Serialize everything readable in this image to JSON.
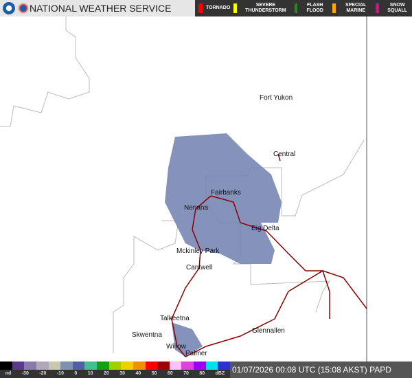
{
  "header": {
    "title": "NATIONAL WEATHER SERVICE"
  },
  "hazards": [
    {
      "label": "TORNADO",
      "color": "#ff0000"
    },
    {
      "label": "SEVERE THUNDERSTORM",
      "color": "#ffff00"
    },
    {
      "label": "FLASH FLOOD",
      "color": "#228b22"
    },
    {
      "label": "SPECIAL MARINE",
      "color": "#ffa500"
    },
    {
      "label": "SNOW SQUALL",
      "color": "#c71585"
    }
  ],
  "cities": [
    "Fort Yukon",
    "Central",
    "Fairbanks",
    "Nenana",
    "Big Delta",
    "Mckinley Park",
    "Cantwell",
    "Talkeetna",
    "Skwentna",
    "Glennallen",
    "Willow",
    "Palmer"
  ],
  "legend": {
    "ticks": [
      "nd",
      "-30",
      "-20",
      "-10",
      "0",
      "10",
      "20",
      "30",
      "40",
      "50",
      "60",
      "70",
      "80",
      "dBZ"
    ],
    "colors": [
      "#000000",
      "#5a3a8a",
      "#8a7aa8",
      "#b0a8b8",
      "#c8c8b0",
      "#8090b0",
      "#5060a0",
      "#40c090",
      "#10a010",
      "#a0d000",
      "#f0d000",
      "#f09000",
      "#ff0000",
      "#a00000",
      "#ffc0ff",
      "#e040e0",
      "#a000f0",
      "#00e0f0",
      "#3030d0"
    ]
  },
  "timestamp": "01/07/2026 00:08 UTC (15:08 AKST) PAPD"
}
